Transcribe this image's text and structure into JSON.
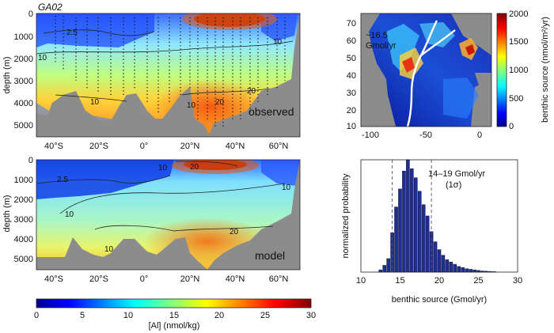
{
  "sections": {
    "observed": {
      "title": "GA02",
      "ylabel": "depth (m)",
      "x_ticks": [
        "40°S",
        "20°S",
        "0°",
        "20°N",
        "40°N",
        "60°N"
      ],
      "y_ticks": [
        "0",
        "1000",
        "2000",
        "3000",
        "4000",
        "5000"
      ],
      "panel_label": "observed",
      "contour_labels": [
        "2.5",
        "10",
        "10",
        "20",
        "10",
        "10",
        "20"
      ]
    },
    "model": {
      "ylabel": "depth (m)",
      "x_ticks": [
        "40°S",
        "20°S",
        "0°",
        "20°N",
        "40°N",
        "60°N"
      ],
      "y_ticks": [
        "0",
        "1000",
        "2000",
        "3000",
        "4000",
        "5000"
      ],
      "panel_label": "model",
      "contour_labels": [
        "2.5",
        "10",
        "20",
        "10",
        "10",
        "10",
        "20"
      ]
    },
    "map": {
      "annotation_line1": "~16.5",
      "annotation_line2": "Gmol/yr",
      "x_ticks": [
        "-100",
        "-50",
        "0"
      ],
      "y_ticks": [
        "70",
        "60",
        "50",
        "40",
        "30",
        "20",
        "10"
      ],
      "colorbar_ticks": [
        "2000",
        "1500",
        "1000",
        "500",
        "0"
      ],
      "colorbar_label": "benthic source (nmol/m²/yr)"
    },
    "colorbar": {
      "ticks": [
        "0",
        "5",
        "10",
        "15",
        "20",
        "25",
        "30"
      ],
      "label": "[Al] (nmol/kg)"
    }
  },
  "chart_data": [
    {
      "type": "heatmap",
      "title": "GA02",
      "xlabel": "",
      "ylabel": "depth (m)",
      "xlim": [
        -50,
        68
      ],
      "ylim": [
        5500,
        0
      ],
      "colorbar": {
        "label": "[Al] (nmol/kg)",
        "range": [
          0,
          30
        ]
      },
      "annotations": [
        "observed"
      ],
      "contour_levels": [
        2.5,
        10,
        20
      ]
    },
    {
      "type": "heatmap",
      "xlabel": "",
      "ylabel": "depth (m)",
      "xlim": [
        -50,
        68
      ],
      "ylim": [
        5500,
        0
      ],
      "colorbar": {
        "label": "[Al] (nmol/kg)",
        "range": [
          0,
          30
        ]
      },
      "annotations": [
        "model"
      ],
      "contour_levels": [
        2.5,
        10,
        20
      ]
    },
    {
      "type": "heatmap",
      "xlim": [
        -105,
        12
      ],
      "ylim": [
        10,
        75
      ],
      "colorbar": {
        "label": "benthic source (nmol/m²/yr)",
        "range": [
          0,
          2000
        ]
      },
      "annotations": [
        "~16.5 Gmol/yr"
      ]
    },
    {
      "type": "bar",
      "xlabel": "benthic source (Gmol/yr)",
      "ylabel": "normalized probability",
      "xlim": [
        10,
        30
      ],
      "ylim": [
        0,
        1
      ],
      "x_ticks": [
        "10",
        "15",
        "20",
        "25",
        "30"
      ],
      "annotation_line1": "14–19 Gmol/yr",
      "annotation_line2": "(1σ)",
      "interval": [
        14,
        19
      ],
      "x": [
        12.5,
        13,
        13.5,
        14,
        14.5,
        15,
        15.5,
        16,
        16.5,
        17,
        17.5,
        18,
        18.5,
        19,
        19.5,
        20,
        20.5,
        21,
        21.5,
        22,
        22.5,
        23,
        23.5,
        24,
        24.5,
        25,
        25.5,
        26,
        26.5,
        27
      ],
      "values": [
        0.02,
        0.06,
        0.12,
        0.35,
        0.58,
        0.74,
        0.9,
        1.0,
        0.92,
        0.84,
        0.72,
        0.6,
        0.5,
        0.36,
        0.27,
        0.2,
        0.15,
        0.11,
        0.09,
        0.07,
        0.05,
        0.04,
        0.03,
        0.025,
        0.02,
        0.015,
        0.01,
        0.008,
        0.006,
        0.004
      ]
    }
  ]
}
